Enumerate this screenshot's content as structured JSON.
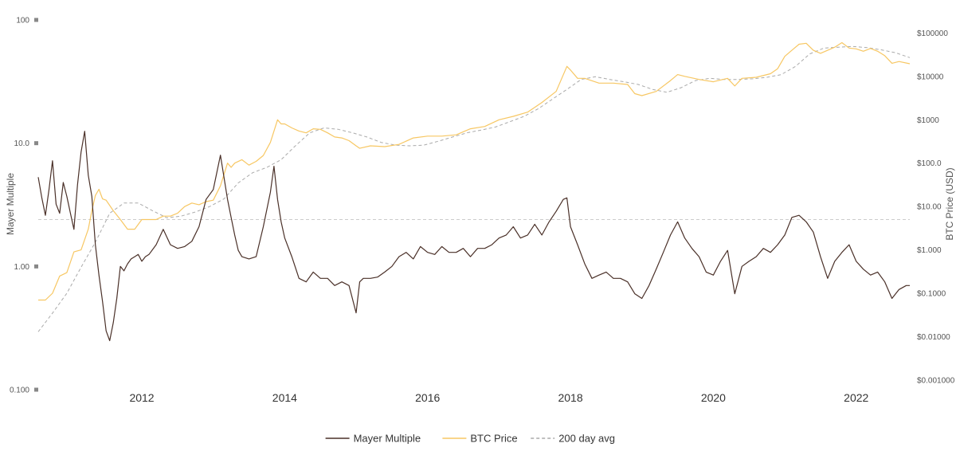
{
  "chart_data": {
    "type": "line",
    "title": "",
    "left_axis": {
      "title": "Mayer Multiple",
      "scale": "log",
      "range": [
        0.1,
        100
      ],
      "ticks": [
        {
          "value": 100,
          "label": "100"
        },
        {
          "value": 10,
          "label": "10.0"
        },
        {
          "value": 1,
          "label": "1.00"
        },
        {
          "value": 0.1,
          "label": "0.100"
        }
      ]
    },
    "right_axis": {
      "title": "BTC Price (USD)",
      "scale": "log",
      "range": [
        0.0006,
        200000
      ],
      "ticks": [
        {
          "value": 100000,
          "label": "$100000"
        },
        {
          "value": 10000,
          "label": "$10000"
        },
        {
          "value": 1000,
          "label": "$1000"
        },
        {
          "value": 100,
          "label": "$100.0"
        },
        {
          "value": 10,
          "label": "$10.00"
        },
        {
          "value": 1,
          "label": "$1.000"
        },
        {
          "value": 0.1,
          "label": "$0.1000"
        },
        {
          "value": 0.01,
          "label": "$0.01000"
        },
        {
          "value": 0.001,
          "label": "$0.001000"
        }
      ]
    },
    "x_axis": {
      "range": [
        2010.55,
        2022.75
      ],
      "ticks": [
        {
          "value": 2012,
          "label": "2012"
        },
        {
          "value": 2014,
          "label": "2014"
        },
        {
          "value": 2016,
          "label": "2016"
        },
        {
          "value": 2018,
          "label": "2018"
        },
        {
          "value": 2020,
          "label": "2020"
        },
        {
          "value": 2022,
          "label": "2022"
        }
      ]
    },
    "reference_line": {
      "axis": "left",
      "value": 2.4
    },
    "grid": false,
    "legend_position": "bottom-center",
    "series": [
      {
        "name": "Mayer Multiple",
        "axis": "left",
        "color": "#4a3028",
        "style": "solid",
        "x": [
          2010.55,
          2010.6,
          2010.65,
          2010.7,
          2010.75,
          2010.8,
          2010.85,
          2010.9,
          2010.95,
          2011.0,
          2011.05,
          2011.1,
          2011.15,
          2011.2,
          2011.25,
          2011.3,
          2011.35,
          2011.4,
          2011.45,
          2011.5,
          2011.55,
          2011.6,
          2011.65,
          2011.7,
          2011.75,
          2011.8,
          2011.85,
          2011.9,
          2011.95,
          2012.0,
          2012.05,
          2012.1,
          2012.2,
          2012.3,
          2012.4,
          2012.5,
          2012.6,
          2012.7,
          2012.8,
          2012.9,
          2013.0,
          2013.1,
          2013.2,
          2013.25,
          2013.3,
          2013.35,
          2013.4,
          2013.5,
          2013.6,
          2013.7,
          2013.8,
          2013.85,
          2013.9,
          2013.95,
          2014.0,
          2014.1,
          2014.2,
          2014.3,
          2014.4,
          2014.5,
          2014.6,
          2014.7,
          2014.8,
          2014.9,
          2015.0,
          2015.05,
          2015.1,
          2015.2,
          2015.3,
          2015.4,
          2015.5,
          2015.6,
          2015.7,
          2015.8,
          2015.9,
          2016.0,
          2016.1,
          2016.2,
          2016.3,
          2016.4,
          2016.5,
          2016.6,
          2016.7,
          2016.8,
          2016.9,
          2017.0,
          2017.1,
          2017.2,
          2017.3,
          2017.4,
          2017.5,
          2017.6,
          2017.7,
          2017.8,
          2017.9,
          2017.95,
          2018.0,
          2018.1,
          2018.2,
          2018.3,
          2018.4,
          2018.5,
          2018.6,
          2018.7,
          2018.8,
          2018.9,
          2019.0,
          2019.1,
          2019.2,
          2019.3,
          2019.4,
          2019.5,
          2019.6,
          2019.7,
          2019.8,
          2019.9,
          2020.0,
          2020.1,
          2020.2,
          2020.3,
          2020.4,
          2020.5,
          2020.6,
          2020.7,
          2020.8,
          2020.9,
          2021.0,
          2021.1,
          2021.2,
          2021.3,
          2021.4,
          2021.5,
          2021.6,
          2021.7,
          2021.8,
          2021.9,
          2022.0,
          2022.1,
          2022.2,
          2022.3,
          2022.4,
          2022.5,
          2022.6,
          2022.7,
          2022.75
        ],
        "values": [
          5.3,
          3.6,
          2.6,
          4.2,
          7.2,
          3.2,
          2.7,
          4.8,
          3.7,
          2.7,
          2.0,
          4.6,
          8.5,
          12.5,
          5.5,
          3.7,
          1.5,
          0.85,
          0.52,
          0.3,
          0.25,
          0.35,
          0.55,
          1.0,
          0.92,
          1.05,
          1.15,
          1.2,
          1.25,
          1.1,
          1.2,
          1.25,
          1.5,
          2.0,
          1.5,
          1.4,
          1.45,
          1.6,
          2.1,
          3.5,
          4.2,
          8.0,
          3.5,
          2.5,
          1.8,
          1.35,
          1.2,
          1.15,
          1.2,
          2.1,
          4.0,
          6.5,
          3.5,
          2.3,
          1.7,
          1.2,
          0.8,
          0.75,
          0.9,
          0.8,
          0.8,
          0.7,
          0.75,
          0.7,
          0.42,
          0.75,
          0.8,
          0.8,
          0.82,
          0.9,
          1.0,
          1.2,
          1.3,
          1.15,
          1.45,
          1.3,
          1.25,
          1.45,
          1.3,
          1.3,
          1.4,
          1.2,
          1.4,
          1.4,
          1.5,
          1.7,
          1.8,
          2.1,
          1.7,
          1.8,
          2.2,
          1.8,
          2.3,
          2.8,
          3.5,
          3.6,
          2.1,
          1.5,
          1.05,
          0.8,
          0.85,
          0.9,
          0.8,
          0.8,
          0.75,
          0.6,
          0.55,
          0.7,
          0.95,
          1.3,
          1.8,
          2.3,
          1.7,
          1.4,
          1.2,
          0.9,
          0.85,
          1.1,
          1.35,
          0.6,
          1.0,
          1.1,
          1.2,
          1.4,
          1.3,
          1.5,
          1.8,
          2.5,
          2.6,
          2.3,
          1.9,
          1.2,
          0.8,
          1.1,
          1.3,
          1.5,
          1.1,
          0.95,
          0.85,
          0.9,
          0.75,
          0.55,
          0.65,
          0.7,
          0.7
        ]
      },
      {
        "name": "BTC Price",
        "axis": "right",
        "color": "#f7c763",
        "style": "solid",
        "x": [
          2010.55,
          2010.65,
          2010.75,
          2010.85,
          2010.95,
          2011.05,
          2011.15,
          2011.25,
          2011.3,
          2011.35,
          2011.4,
          2011.45,
          2011.5,
          2011.6,
          2011.7,
          2011.8,
          2011.9,
          2012.0,
          2012.1,
          2012.2,
          2012.3,
          2012.4,
          2012.5,
          2012.6,
          2012.7,
          2012.8,
          2012.9,
          2013.0,
          2013.1,
          2013.2,
          2013.25,
          2013.3,
          2013.4,
          2013.5,
          2013.6,
          2013.7,
          2013.8,
          2013.9,
          2013.95,
          2014.0,
          2014.1,
          2014.2,
          2014.3,
          2014.4,
          2014.5,
          2014.6,
          2014.7,
          2014.8,
          2014.9,
          2015.0,
          2015.05,
          2015.2,
          2015.4,
          2015.6,
          2015.8,
          2016.0,
          2016.2,
          2016.4,
          2016.6,
          2016.8,
          2017.0,
          2017.2,
          2017.4,
          2017.6,
          2017.8,
          2017.95,
          2018.0,
          2018.1,
          2018.2,
          2018.4,
          2018.6,
          2018.8,
          2018.9,
          2019.0,
          2019.2,
          2019.4,
          2019.5,
          2019.6,
          2019.8,
          2020.0,
          2020.2,
          2020.3,
          2020.4,
          2020.6,
          2020.8,
          2020.9,
          2021.0,
          2021.1,
          2021.2,
          2021.3,
          2021.4,
          2021.5,
          2021.6,
          2021.7,
          2021.8,
          2021.9,
          2022.0,
          2022.1,
          2022.2,
          2022.3,
          2022.4,
          2022.5,
          2022.6,
          2022.75
        ],
        "values": [
          0.07,
          0.07,
          0.1,
          0.25,
          0.3,
          0.9,
          1.0,
          3.0,
          8.0,
          18,
          25,
          15,
          14,
          8,
          5,
          3,
          3,
          5,
          5,
          5,
          6,
          6,
          7,
          10,
          12,
          11,
          13,
          14,
          30,
          100,
          80,
          100,
          120,
          90,
          110,
          150,
          300,
          1000,
          800,
          800,
          650,
          550,
          500,
          620,
          600,
          500,
          400,
          380,
          330,
          250,
          220,
          250,
          240,
          270,
          380,
          420,
          420,
          450,
          620,
          700,
          1000,
          1200,
          1500,
          2500,
          4500,
          17000,
          14000,
          9000,
          9000,
          7000,
          7000,
          6500,
          4000,
          3600,
          4500,
          8000,
          11000,
          10000,
          8500,
          7500,
          9000,
          6000,
          9000,
          9500,
          11500,
          15000,
          29000,
          40000,
          55000,
          58000,
          40000,
          34000,
          40000,
          47000,
          60000,
          45000,
          43000,
          38000,
          44000,
          38000,
          30000,
          20000,
          22000,
          19500
        ]
      },
      {
        "name": "200 day avg",
        "axis": "right",
        "color": "#aaaaaa",
        "style": "dashed",
        "x": [
          2010.55,
          2010.75,
          2010.95,
          2011.15,
          2011.35,
          2011.55,
          2011.75,
          2011.95,
          2012.15,
          2012.35,
          2012.55,
          2012.75,
          2012.95,
          2013.15,
          2013.35,
          2013.55,
          2013.75,
          2013.95,
          2014.15,
          2014.35,
          2014.55,
          2014.75,
          2014.95,
          2015.15,
          2015.35,
          2015.55,
          2015.75,
          2015.95,
          2016.15,
          2016.35,
          2016.55,
          2016.75,
          2016.95,
          2017.15,
          2017.35,
          2017.55,
          2017.75,
          2017.95,
          2018.15,
          2018.35,
          2018.55,
          2018.75,
          2018.95,
          2019.15,
          2019.35,
          2019.55,
          2019.75,
          2019.95,
          2020.15,
          2020.35,
          2020.55,
          2020.75,
          2020.95,
          2021.15,
          2021.35,
          2021.55,
          2021.75,
          2021.95,
          2022.15,
          2022.35,
          2022.55,
          2022.75
        ],
        "values": [
          0.013,
          0.035,
          0.1,
          0.4,
          1.5,
          7,
          12,
          12,
          8,
          5.5,
          6,
          7.5,
          10,
          15,
          35,
          60,
          80,
          120,
          250,
          500,
          650,
          600,
          500,
          400,
          300,
          260,
          250,
          260,
          320,
          400,
          500,
          580,
          680,
          900,
          1200,
          1800,
          3000,
          5000,
          8500,
          9800,
          8500,
          7500,
          6500,
          5000,
          4300,
          5500,
          8000,
          9000,
          8500,
          8500,
          8800,
          9500,
          11000,
          17000,
          33000,
          45000,
          47000,
          49000,
          46000,
          41000,
          35000,
          27000
        ]
      }
    ]
  }
}
